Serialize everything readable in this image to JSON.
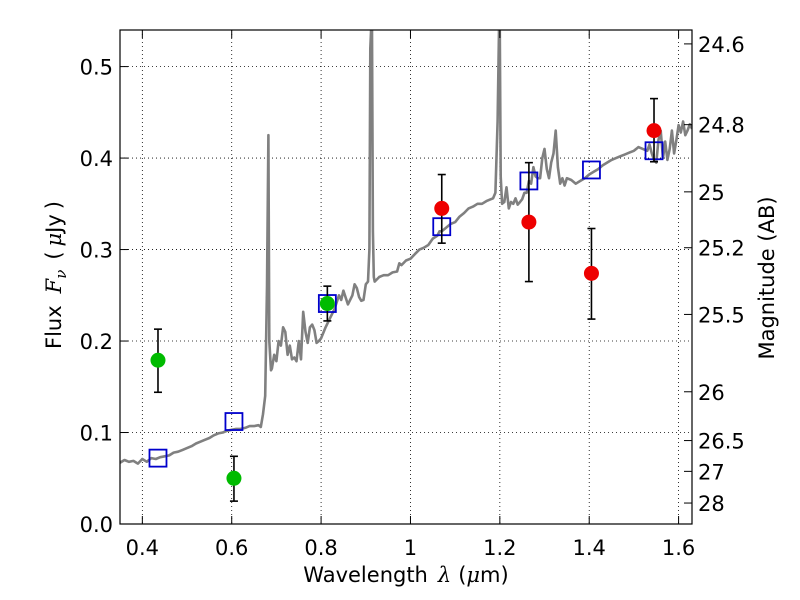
{
  "chart_data": {
    "type": "scatter",
    "xlabel": {
      "text": "Wavelength",
      "symbol": "λ",
      "unit_open": "(",
      "unit_mu": "μ",
      "unit_rest": "m)"
    },
    "ylabel": {
      "text": "Flux",
      "symbol": "F",
      "sub": "ν",
      "unit_open": "(",
      "unit_mu": "μ",
      "unit_rest": "Jy",
      "unit_close": ")"
    },
    "y2label": "Magnitude (AB)",
    "xlim": [
      0.35,
      1.63
    ],
    "ylim": [
      0.0,
      0.54
    ],
    "grid": true,
    "x_ticks": [
      {
        "value": 0.4,
        "label": "0.4"
      },
      {
        "value": 0.6,
        "label": "0.6"
      },
      {
        "value": 0.8,
        "label": "0.8"
      },
      {
        "value": 1.0,
        "label": "1"
      },
      {
        "value": 1.2,
        "label": "1.2"
      },
      {
        "value": 1.4,
        "label": "1.4"
      },
      {
        "value": 1.6,
        "label": "1.6"
      }
    ],
    "y_ticks": [
      {
        "value": 0.0,
        "label": "0.0"
      },
      {
        "value": 0.1,
        "label": "0.1"
      },
      {
        "value": 0.2,
        "label": "0.2"
      },
      {
        "value": 0.3,
        "label": "0.3"
      },
      {
        "value": 0.4,
        "label": "0.4"
      },
      {
        "value": 0.5,
        "label": "0.5"
      }
    ],
    "y2_ticks": [
      {
        "value": 24.6,
        "label": "24.6"
      },
      {
        "value": 24.8,
        "label": "24.8"
      },
      {
        "value": 25.0,
        "label": "25"
      },
      {
        "value": 25.2,
        "label": "25.2"
      },
      {
        "value": 25.5,
        "label": "25.5"
      },
      {
        "value": 26.0,
        "label": "26"
      },
      {
        "value": 26.5,
        "label": "26.5"
      },
      {
        "value": 27.0,
        "label": "27"
      },
      {
        "value": 28.0,
        "label": "28"
      }
    ],
    "series": [
      {
        "kind": "line",
        "color": "#808080",
        "points": [
          [
            0.35,
            0.067
          ],
          [
            0.36,
            0.07
          ],
          [
            0.37,
            0.068
          ],
          [
            0.38,
            0.069
          ],
          [
            0.39,
            0.066
          ],
          [
            0.4,
            0.071
          ],
          [
            0.41,
            0.068
          ],
          [
            0.42,
            0.072
          ],
          [
            0.43,
            0.071
          ],
          [
            0.44,
            0.073
          ],
          [
            0.45,
            0.074
          ],
          [
            0.46,
            0.075
          ],
          [
            0.47,
            0.078
          ],
          [
            0.48,
            0.079
          ],
          [
            0.49,
            0.081
          ],
          [
            0.5,
            0.083
          ],
          [
            0.51,
            0.085
          ],
          [
            0.52,
            0.088
          ],
          [
            0.53,
            0.09
          ],
          [
            0.54,
            0.092
          ],
          [
            0.55,
            0.094
          ],
          [
            0.56,
            0.097
          ],
          [
            0.57,
            0.099
          ],
          [
            0.58,
            0.1
          ],
          [
            0.59,
            0.102
          ],
          [
            0.6,
            0.103
          ],
          [
            0.61,
            0.104
          ],
          [
            0.62,
            0.104
          ],
          [
            0.63,
            0.105
          ],
          [
            0.64,
            0.107
          ],
          [
            0.65,
            0.107
          ],
          [
            0.66,
            0.108
          ],
          [
            0.665,
            0.106
          ],
          [
            0.67,
            0.12
          ],
          [
            0.675,
            0.14
          ],
          [
            0.679,
            0.26
          ],
          [
            0.682,
            0.425
          ],
          [
            0.684,
            0.2
          ],
          [
            0.688,
            0.168
          ],
          [
            0.69,
            0.17
          ],
          [
            0.695,
            0.185
          ],
          [
            0.7,
            0.178
          ],
          [
            0.705,
            0.2
          ],
          [
            0.71,
            0.195
          ],
          [
            0.715,
            0.215
          ],
          [
            0.72,
            0.21
          ],
          [
            0.725,
            0.185
          ],
          [
            0.73,
            0.195
          ],
          [
            0.735,
            0.18
          ],
          [
            0.74,
            0.182
          ],
          [
            0.745,
            0.178
          ],
          [
            0.75,
            0.2
          ],
          [
            0.755,
            0.18
          ],
          [
            0.76,
            0.232
          ],
          [
            0.765,
            0.21
          ],
          [
            0.77,
            0.198
          ],
          [
            0.775,
            0.215
          ],
          [
            0.78,
            0.218
          ],
          [
            0.785,
            0.212
          ],
          [
            0.79,
            0.198
          ],
          [
            0.795,
            0.2
          ],
          [
            0.8,
            0.203
          ],
          [
            0.81,
            0.215
          ],
          [
            0.82,
            0.225
          ],
          [
            0.83,
            0.235
          ],
          [
            0.84,
            0.25
          ],
          [
            0.845,
            0.245
          ],
          [
            0.85,
            0.255
          ],
          [
            0.86,
            0.24
          ],
          [
            0.87,
            0.25
          ],
          [
            0.875,
            0.262
          ],
          [
            0.88,
            0.258
          ],
          [
            0.885,
            0.248
          ],
          [
            0.89,
            0.244
          ],
          [
            0.895,
            0.245
          ],
          [
            0.9,
            0.262
          ],
          [
            0.905,
            0.265
          ],
          [
            0.908,
            0.3
          ],
          [
            0.91,
            0.52
          ],
          [
            0.912,
            0.54
          ],
          [
            0.914,
            0.54
          ],
          [
            0.916,
            0.32
          ],
          [
            0.918,
            0.27
          ],
          [
            0.92,
            0.265
          ],
          [
            0.93,
            0.27
          ],
          [
            0.94,
            0.272
          ],
          [
            0.95,
            0.272
          ],
          [
            0.96,
            0.275
          ],
          [
            0.97,
            0.276
          ],
          [
            0.975,
            0.285
          ],
          [
            0.98,
            0.283
          ],
          [
            0.99,
            0.288
          ],
          [
            1.0,
            0.29
          ],
          [
            1.01,
            0.295
          ],
          [
            1.02,
            0.3
          ],
          [
            1.03,
            0.302
          ],
          [
            1.04,
            0.305
          ],
          [
            1.05,
            0.312
          ],
          [
            1.06,
            0.315
          ],
          [
            1.065,
            0.32
          ],
          [
            1.07,
            0.32
          ],
          [
            1.08,
            0.324
          ],
          [
            1.09,
            0.328
          ],
          [
            1.1,
            0.33
          ],
          [
            1.11,
            0.336
          ],
          [
            1.12,
            0.34
          ],
          [
            1.13,
            0.345
          ],
          [
            1.14,
            0.347
          ],
          [
            1.15,
            0.35
          ],
          [
            1.16,
            0.35
          ],
          [
            1.17,
            0.353
          ],
          [
            1.18,
            0.355
          ],
          [
            1.185,
            0.356
          ],
          [
            1.19,
            0.362
          ],
          [
            1.195,
            0.44
          ],
          [
            1.198,
            0.54
          ],
          [
            1.2,
            0.54
          ],
          [
            1.202,
            0.38
          ],
          [
            1.205,
            0.35
          ],
          [
            1.21,
            0.352
          ],
          [
            1.215,
            0.368
          ],
          [
            1.22,
            0.345
          ],
          [
            1.225,
            0.352
          ],
          [
            1.23,
            0.35
          ],
          [
            1.235,
            0.356
          ],
          [
            1.24,
            0.349
          ],
          [
            1.245,
            0.352
          ],
          [
            1.25,
            0.355
          ],
          [
            1.255,
            0.362
          ],
          [
            1.26,
            0.362
          ],
          [
            1.265,
            0.375
          ],
          [
            1.27,
            0.372
          ],
          [
            1.275,
            0.39
          ],
          [
            1.28,
            0.38
          ],
          [
            1.285,
            0.378
          ],
          [
            1.29,
            0.378
          ],
          [
            1.295,
            0.4
          ],
          [
            1.3,
            0.41
          ],
          [
            1.305,
            0.388
          ],
          [
            1.31,
            0.378
          ],
          [
            1.315,
            0.395
          ],
          [
            1.32,
            0.405
          ],
          [
            1.325,
            0.43
          ],
          [
            1.33,
            0.39
          ],
          [
            1.335,
            0.372
          ],
          [
            1.34,
            0.378
          ],
          [
            1.345,
            0.37
          ],
          [
            1.35,
            0.378
          ],
          [
            1.36,
            0.376
          ],
          [
            1.37,
            0.372
          ],
          [
            1.38,
            0.375
          ],
          [
            1.39,
            0.378
          ],
          [
            1.4,
            0.382
          ],
          [
            1.41,
            0.385
          ],
          [
            1.42,
            0.388
          ],
          [
            1.43,
            0.392
          ],
          [
            1.44,
            0.395
          ],
          [
            1.45,
            0.398
          ],
          [
            1.46,
            0.4
          ],
          [
            1.47,
            0.402
          ],
          [
            1.48,
            0.404
          ],
          [
            1.49,
            0.406
          ],
          [
            1.5,
            0.408
          ],
          [
            1.51,
            0.412
          ],
          [
            1.52,
            0.41
          ],
          [
            1.53,
            0.408
          ],
          [
            1.535,
            0.415
          ],
          [
            1.54,
            0.405
          ],
          [
            1.545,
            0.398
          ],
          [
            1.55,
            0.395
          ],
          [
            1.555,
            0.42
          ],
          [
            1.56,
            0.43
          ],
          [
            1.565,
            0.4
          ],
          [
            1.57,
            0.418
          ],
          [
            1.575,
            0.398
          ],
          [
            1.58,
            0.41
          ],
          [
            1.585,
            0.43
          ],
          [
            1.59,
            0.405
          ],
          [
            1.595,
            0.42
          ],
          [
            1.6,
            0.436
          ],
          [
            1.605,
            0.428
          ],
          [
            1.61,
            0.44
          ],
          [
            1.615,
            0.425
          ],
          [
            1.62,
            0.43
          ],
          [
            1.625,
            0.437
          ],
          [
            1.63,
            0.432
          ]
        ]
      },
      {
        "kind": "open-square",
        "color": "#0000cc",
        "points": [
          [
            0.435,
            0.072
          ],
          [
            0.605,
            0.112
          ],
          [
            0.814,
            0.241
          ],
          [
            1.07,
            0.325
          ],
          [
            1.265,
            0.375
          ],
          [
            1.405,
            0.387
          ],
          [
            1.545,
            0.408
          ]
        ]
      },
      {
        "kind": "filled-circle",
        "color": "#00bb00",
        "points": [
          {
            "x": 0.435,
            "y": 0.179,
            "yerr": [
              0.144,
              0.213
            ]
          },
          {
            "x": 0.605,
            "y": 0.05,
            "yerr": [
              0.025,
              0.074
            ]
          },
          {
            "x": 0.814,
            "y": 0.241,
            "yerr": [
              0.222,
              0.26
            ]
          }
        ]
      },
      {
        "kind": "filled-circle",
        "color": "#ee0000",
        "points": [
          {
            "x": 1.07,
            "y": 0.345,
            "yerr": [
              0.307,
              0.382
            ]
          },
          {
            "x": 1.265,
            "y": 0.33,
            "yerr": [
              0.265,
              0.395
            ]
          },
          {
            "x": 1.405,
            "y": 0.274,
            "yerr": [
              0.224,
              0.323
            ]
          },
          {
            "x": 1.545,
            "y": 0.43,
            "yerr": [
              0.396,
              0.465
            ]
          }
        ]
      }
    ]
  }
}
